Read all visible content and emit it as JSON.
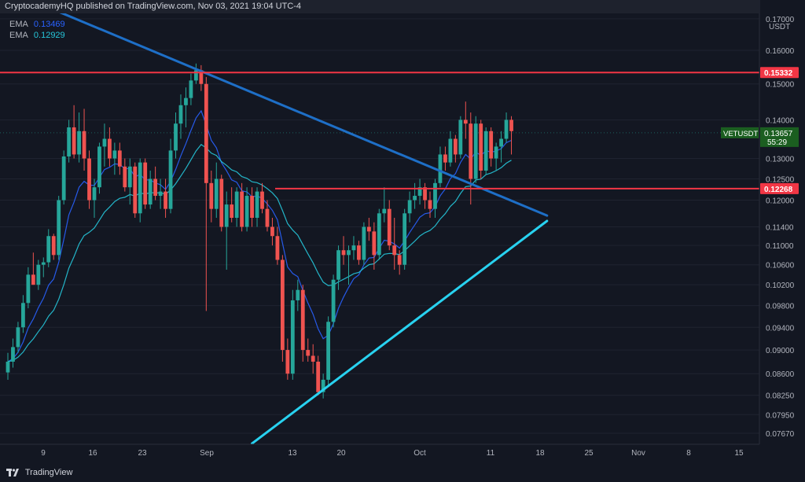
{
  "header": {
    "attribution": "CryptocademyHQ published on TradingView.com, Nov 03, 2021 19:04 UTC-4"
  },
  "legend": {
    "ema1": {
      "label": "EMA",
      "value": "0.13469",
      "color": "#2962ff"
    },
    "ema2": {
      "label": "EMA",
      "value": "0.12929",
      "color": "#26c6da"
    }
  },
  "footer": {
    "brand": "TradingView"
  },
  "chart_data": {
    "type": "candlestick",
    "symbol": "VETUSDT",
    "currency": "USDT",
    "last_price": "0.13657",
    "countdown": "55:29",
    "y_axis": {
      "scale": "log",
      "ticks": [
        "0.17000",
        "0.16000",
        "0.15000",
        "0.14000",
        "0.13000",
        "0.12500",
        "0.12000",
        "0.11400",
        "0.11000",
        "0.10600",
        "0.10200",
        "0.09800",
        "0.09400",
        "0.09000",
        "0.08600",
        "0.08250",
        "0.07950",
        "0.07670"
      ]
    },
    "x_axis": {
      "ticks": [
        "9",
        "16",
        "23",
        "Sep",
        "13",
        "20",
        "Oct",
        "11",
        "18",
        "25",
        "Nov",
        "8",
        "15"
      ]
    },
    "horizontal_levels": [
      {
        "value": "0.15332",
        "color": "#f23645"
      },
      {
        "value": "0.12268",
        "color": "#f23645"
      }
    ],
    "trendlines": [
      {
        "from": [
          "2021-08-04",
          0.178
        ],
        "to": [
          "2021-11-16",
          0.1165
        ],
        "color": "#1e6fc7"
      },
      {
        "from": [
          "2021-09-19",
          0.0752
        ],
        "to": [
          "2021-11-16",
          0.1153
        ],
        "color": "#28d2f0"
      }
    ],
    "series": [
      {
        "name": "candles",
        "start_date": "2021-08-02",
        "ohlc": [
          [
            0.0862,
            0.0895,
            0.085,
            0.088
          ],
          [
            0.088,
            0.092,
            0.087,
            0.0905
          ],
          [
            0.0905,
            0.095,
            0.0895,
            0.094
          ],
          [
            0.094,
            0.1,
            0.093,
            0.0985
          ],
          [
            0.0985,
            0.1055,
            0.0975,
            0.104
          ],
          [
            0.104,
            0.1085,
            0.102,
            0.102
          ],
          [
            0.102,
            0.107,
            0.101,
            0.106
          ],
          [
            0.106,
            0.1075,
            0.1035,
            0.1065
          ],
          [
            0.1065,
            0.1135,
            0.1055,
            0.112
          ],
          [
            0.112,
            0.1125,
            0.107,
            0.108
          ],
          [
            0.108,
            0.121,
            0.107,
            0.12
          ],
          [
            0.12,
            0.132,
            0.119,
            0.1305
          ],
          [
            0.1305,
            0.14,
            0.129,
            0.138
          ],
          [
            0.138,
            0.144,
            0.13,
            0.131
          ],
          [
            0.131,
            0.142,
            0.129,
            0.137
          ],
          [
            0.137,
            0.143,
            0.127,
            0.13
          ],
          [
            0.13,
            0.132,
            0.118,
            0.12
          ],
          [
            0.12,
            0.125,
            0.116,
            0.123
          ],
          [
            0.123,
            0.134,
            0.1215,
            0.133
          ],
          [
            0.133,
            0.139,
            0.128,
            0.135
          ],
          [
            0.135,
            0.138,
            0.128,
            0.13
          ],
          [
            0.13,
            0.134,
            0.126,
            0.132
          ],
          [
            0.132,
            0.134,
            0.126,
            0.128
          ],
          [
            0.128,
            0.13,
            0.122,
            0.123
          ],
          [
            0.123,
            0.13,
            0.119,
            0.128
          ],
          [
            0.128,
            0.129,
            0.116,
            0.117
          ],
          [
            0.117,
            0.13,
            0.115,
            0.129
          ],
          [
            0.129,
            0.13,
            0.118,
            0.119
          ],
          [
            0.119,
            0.127,
            0.118,
            0.125
          ],
          [
            0.125,
            0.128,
            0.12,
            0.121
          ],
          [
            0.121,
            0.125,
            0.118,
            0.122
          ],
          [
            0.122,
            0.125,
            0.116,
            0.118
          ],
          [
            0.118,
            0.135,
            0.117,
            0.132
          ],
          [
            0.132,
            0.142,
            0.13,
            0.139
          ],
          [
            0.139,
            0.147,
            0.135,
            0.144
          ],
          [
            0.144,
            0.149,
            0.138,
            0.146
          ],
          [
            0.146,
            0.153,
            0.144,
            0.151
          ],
          [
            0.151,
            0.156,
            0.15,
            0.154
          ],
          [
            0.154,
            0.1555,
            0.148,
            0.15
          ],
          [
            0.15,
            0.152,
            0.097,
            0.124
          ],
          [
            0.124,
            0.127,
            0.115,
            0.118
          ],
          [
            0.118,
            0.129,
            0.116,
            0.125
          ],
          [
            0.125,
            0.126,
            0.113,
            0.114
          ],
          [
            0.114,
            0.122,
            0.105,
            0.119
          ],
          [
            0.119,
            0.123,
            0.115,
            0.116
          ],
          [
            0.116,
            0.123,
            0.114,
            0.122
          ],
          [
            0.122,
            0.124,
            0.113,
            0.114
          ],
          [
            0.114,
            0.123,
            0.113,
            0.121
          ],
          [
            0.121,
            0.123,
            0.114,
            0.116
          ],
          [
            0.116,
            0.123,
            0.114,
            0.122
          ],
          [
            0.122,
            0.124,
            0.117,
            0.118
          ],
          [
            0.118,
            0.12,
            0.113,
            0.114
          ],
          [
            0.114,
            0.116,
            0.11,
            0.112
          ],
          [
            0.112,
            0.114,
            0.106,
            0.107
          ],
          [
            0.107,
            0.108,
            0.088,
            0.09
          ],
          [
            0.09,
            0.092,
            0.085,
            0.086
          ],
          [
            0.086,
            0.101,
            0.085,
            0.099
          ],
          [
            0.099,
            0.103,
            0.097,
            0.101
          ],
          [
            0.101,
            0.102,
            0.088,
            0.09
          ],
          [
            0.09,
            0.092,
            0.088,
            0.089
          ],
          [
            0.089,
            0.091,
            0.086,
            0.088
          ],
          [
            0.088,
            0.089,
            0.0825,
            0.083
          ],
          [
            0.083,
            0.086,
            0.082,
            0.085
          ],
          [
            0.085,
            0.096,
            0.084,
            0.095
          ],
          [
            0.095,
            0.104,
            0.094,
            0.103
          ],
          [
            0.103,
            0.11,
            0.101,
            0.109
          ],
          [
            0.109,
            0.112,
            0.106,
            0.108
          ],
          [
            0.108,
            0.11,
            0.102,
            0.109
          ],
          [
            0.109,
            0.112,
            0.107,
            0.11
          ],
          [
            0.11,
            0.111,
            0.106,
            0.107
          ],
          [
            0.107,
            0.115,
            0.106,
            0.114
          ],
          [
            0.114,
            0.116,
            0.111,
            0.113
          ],
          [
            0.113,
            0.115,
            0.105,
            0.108
          ],
          [
            0.108,
            0.118,
            0.107,
            0.117
          ],
          [
            0.117,
            0.123,
            0.115,
            0.118
          ],
          [
            0.118,
            0.12,
            0.109,
            0.11
          ],
          [
            0.11,
            0.116,
            0.105,
            0.108
          ],
          [
            0.108,
            0.109,
            0.104,
            0.106
          ],
          [
            0.106,
            0.118,
            0.105,
            0.117
          ],
          [
            0.117,
            0.122,
            0.115,
            0.12
          ],
          [
            0.12,
            0.124,
            0.118,
            0.121
          ],
          [
            0.121,
            0.125,
            0.119,
            0.123
          ],
          [
            0.123,
            0.124,
            0.118,
            0.12
          ],
          [
            0.12,
            0.122,
            0.116,
            0.118
          ],
          [
            0.118,
            0.125,
            0.116,
            0.124
          ],
          [
            0.124,
            0.133,
            0.123,
            0.131
          ],
          [
            0.131,
            0.133,
            0.127,
            0.129
          ],
          [
            0.129,
            0.137,
            0.128,
            0.135
          ],
          [
            0.135,
            0.136,
            0.129,
            0.131
          ],
          [
            0.131,
            0.141,
            0.13,
            0.14
          ],
          [
            0.14,
            0.145,
            0.135,
            0.139
          ],
          [
            0.139,
            0.142,
            0.119,
            0.125
          ],
          [
            0.125,
            0.141,
            0.124,
            0.139
          ],
          [
            0.139,
            0.14,
            0.125,
            0.127
          ],
          [
            0.127,
            0.138,
            0.126,
            0.137
          ],
          [
            0.137,
            0.138,
            0.128,
            0.13
          ],
          [
            0.13,
            0.134,
            0.127,
            0.133
          ],
          [
            0.133,
            0.137,
            0.129,
            0.135
          ],
          [
            0.135,
            0.142,
            0.134,
            0.14
          ],
          [
            0.14,
            0.141,
            0.131,
            0.137
          ]
        ]
      }
    ]
  }
}
